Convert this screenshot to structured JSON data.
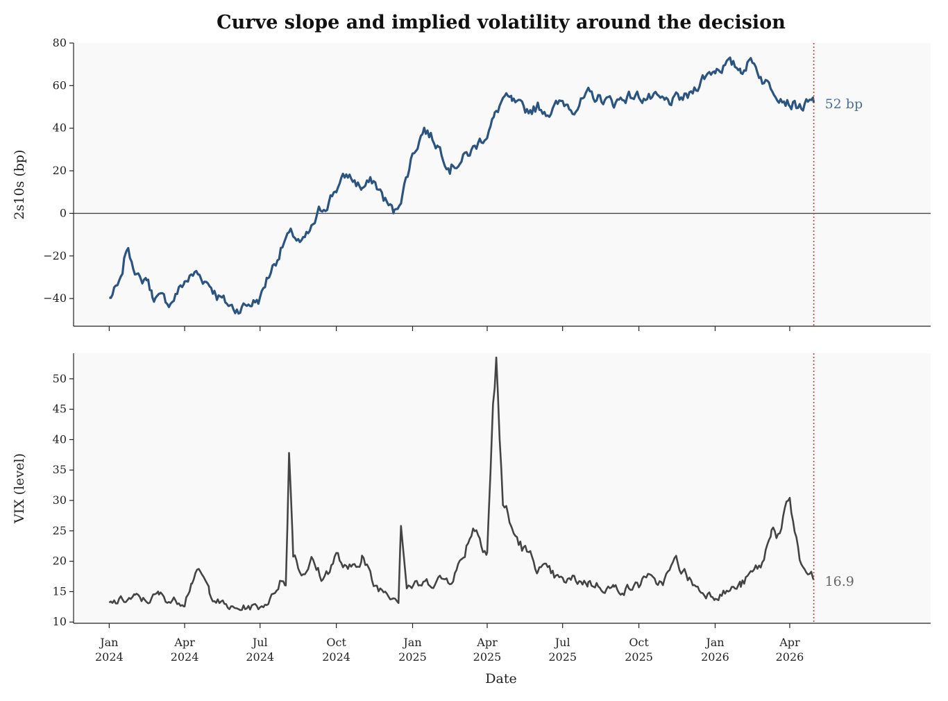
{
  "chart_data": {
    "type": "line",
    "title": "Curve slope and implied volatility around the decision",
    "xlabel": "Date",
    "x_ticks": [
      {
        "date": "2024-01-01",
        "line1": "Jan",
        "line2": "2024"
      },
      {
        "date": "2024-04-01",
        "line1": "Apr",
        "line2": "2024"
      },
      {
        "date": "2024-07-01",
        "line1": "Jul",
        "line2": "2024"
      },
      {
        "date": "2024-10-01",
        "line1": "Oct",
        "line2": "2024"
      },
      {
        "date": "2025-01-01",
        "line1": "Jan",
        "line2": "2025"
      },
      {
        "date": "2025-04-01",
        "line1": "Apr",
        "line2": "2025"
      },
      {
        "date": "2025-07-01",
        "line1": "Jul",
        "line2": "2025"
      },
      {
        "date": "2025-10-01",
        "line1": "Oct",
        "line2": "2025"
      },
      {
        "date": "2026-01-01",
        "line1": "Jan",
        "line2": "2026"
      },
      {
        "date": "2026-04-01",
        "line1": "Apr",
        "line2": "2026"
      }
    ],
    "xlim": [
      "2023-11-19",
      "2026-09-18"
    ],
    "decision_date": "2026-04-30",
    "grid": false,
    "colors": {
      "slope": "#2b5580",
      "vix": "#444444",
      "decision_line": "#b5473a",
      "zero_line": "#444444",
      "panel_bg": "#f9f9f9"
    },
    "panels": [
      {
        "ylabel": "2s10s (bp)",
        "ylim": [
          -53,
          80
        ],
        "yticks": [
          -40,
          -20,
          0,
          20,
          40,
          60,
          80
        ],
        "ytick_labels": [
          "−40",
          "−20",
          "0",
          "20",
          "40",
          "60",
          "80"
        ],
        "zero_line": true,
        "end_label": "52 bp",
        "series": {
          "color": "#2b5580",
          "x": [
            "2024-01-01",
            "2024-01-15",
            "2024-01-22",
            "2024-02-01",
            "2024-02-08",
            "2024-02-15",
            "2024-02-22",
            "2024-03-01",
            "2024-03-15",
            "2024-04-01",
            "2024-04-15",
            "2024-05-01",
            "2024-05-10",
            "2024-05-20",
            "2024-06-01",
            "2024-06-15",
            "2024-07-01",
            "2024-07-10",
            "2024-07-20",
            "2024-08-01",
            "2024-08-10",
            "2024-08-20",
            "2024-09-01",
            "2024-09-10",
            "2024-09-20",
            "2024-10-01",
            "2024-10-15",
            "2024-11-01",
            "2024-11-15",
            "2024-12-01",
            "2024-12-10",
            "2024-12-20",
            "2025-01-01",
            "2025-01-15",
            "2025-02-01",
            "2025-02-15",
            "2025-03-01",
            "2025-03-15",
            "2025-04-01",
            "2025-04-10",
            "2025-04-20",
            "2025-05-01",
            "2025-05-15",
            "2025-06-01",
            "2025-06-15",
            "2025-07-01",
            "2025-07-15",
            "2025-08-01",
            "2025-08-15",
            "2025-09-01",
            "2025-09-15",
            "2025-10-01",
            "2025-10-15",
            "2025-11-01",
            "2025-11-15",
            "2025-12-01",
            "2025-12-15",
            "2026-01-01",
            "2026-01-15",
            "2026-02-01",
            "2026-02-15",
            "2026-03-01",
            "2026-03-15",
            "2026-04-01",
            "2026-04-15",
            "2026-04-30"
          ],
          "y": [
            -40,
            -33,
            -16,
            -25,
            -33,
            -30,
            -38,
            -40,
            -42,
            -32,
            -28,
            -33,
            -38,
            -42,
            -45,
            -43,
            -40,
            -30,
            -22,
            -12,
            -10,
            -15,
            -8,
            0,
            5,
            12,
            18,
            12,
            15,
            5,
            0,
            10,
            28,
            40,
            32,
            22,
            25,
            30,
            38,
            45,
            54,
            52,
            48,
            50,
            48,
            52,
            50,
            55,
            54,
            52,
            55,
            55,
            54,
            52,
            53,
            55,
            63,
            68,
            70,
            68,
            72,
            62,
            58,
            52,
            50,
            52
          ]
        }
      },
      {
        "ylabel": "VIX (level)",
        "ylim": [
          9.8,
          54.2
        ],
        "yticks": [
          10,
          15,
          20,
          25,
          30,
          35,
          40,
          45,
          50
        ],
        "ytick_labels": [
          "10",
          "15",
          "20",
          "25",
          "30",
          "35",
          "40",
          "45",
          "50"
        ],
        "zero_line": false,
        "end_label": "16.9",
        "series": {
          "color": "#444444",
          "x": [
            "2024-01-01",
            "2024-01-15",
            "2024-02-01",
            "2024-02-15",
            "2024-03-01",
            "2024-03-15",
            "2024-04-01",
            "2024-04-10",
            "2024-04-20",
            "2024-05-01",
            "2024-05-15",
            "2024-06-01",
            "2024-06-15",
            "2024-07-01",
            "2024-07-15",
            "2024-07-25",
            "2024-08-01",
            "2024-08-05",
            "2024-08-10",
            "2024-08-20",
            "2024-09-01",
            "2024-09-15",
            "2024-10-01",
            "2024-10-15",
            "2024-11-01",
            "2024-11-15",
            "2024-12-01",
            "2024-12-15",
            "2024-12-18",
            "2024-12-25",
            "2025-01-10",
            "2025-02-01",
            "2025-02-15",
            "2025-03-01",
            "2025-03-15",
            "2025-04-01",
            "2025-04-08",
            "2025-04-12",
            "2025-04-20",
            "2025-05-01",
            "2025-05-15",
            "2025-06-01",
            "2025-06-15",
            "2025-07-01",
            "2025-07-15",
            "2025-08-01",
            "2025-08-15",
            "2025-09-01",
            "2025-09-15",
            "2025-10-01",
            "2025-10-10",
            "2025-10-20",
            "2025-11-01",
            "2025-11-15",
            "2025-12-01",
            "2025-12-15",
            "2026-01-01",
            "2026-01-15",
            "2026-02-01",
            "2026-02-15",
            "2026-03-01",
            "2026-03-10",
            "2026-03-20",
            "2026-04-01",
            "2026-04-15",
            "2026-04-30"
          ],
          "y": [
            13,
            13.5,
            14,
            13.5,
            14.5,
            13.5,
            13.5,
            17,
            18,
            15,
            13,
            12,
            12.5,
            12.5,
            14,
            17,
            16,
            38.5,
            22,
            18,
            20,
            17,
            21,
            18,
            21,
            16,
            15,
            14,
            27,
            16,
            16,
            17,
            17,
            20,
            26,
            22,
            45,
            52,
            30,
            25,
            22,
            19,
            18,
            16.5,
            17,
            16.5,
            16,
            15.5,
            15.5,
            16,
            18,
            16,
            17,
            20,
            17,
            15,
            14.5,
            15,
            16,
            18,
            20,
            26,
            24,
            30,
            19,
            16.9
          ]
        }
      }
    ]
  }
}
